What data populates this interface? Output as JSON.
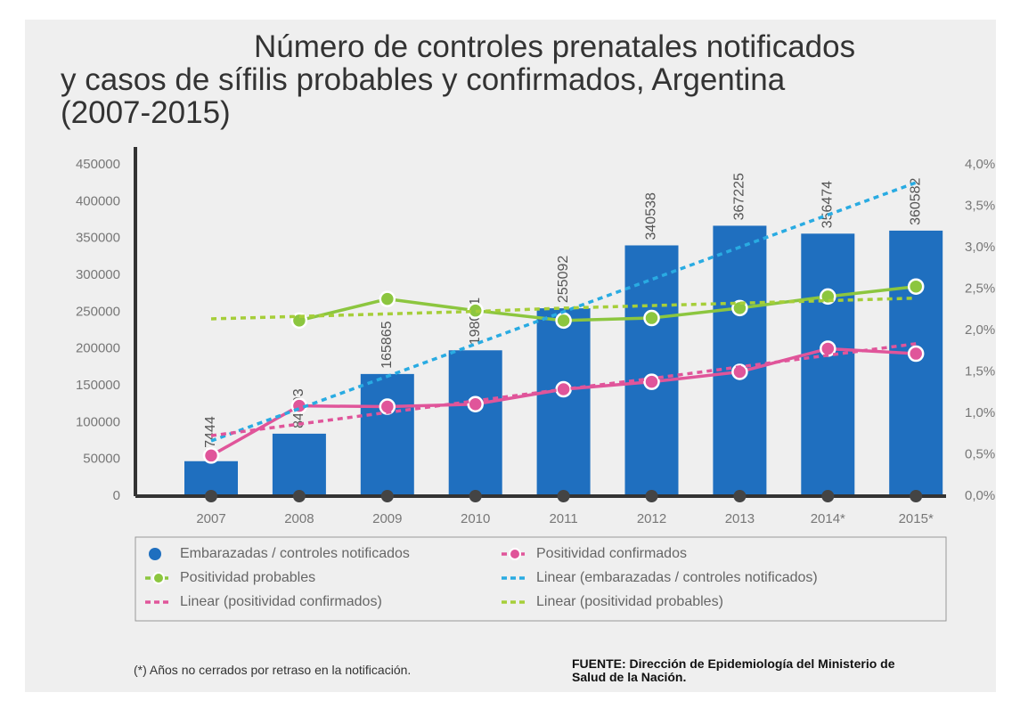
{
  "chart_data": {
    "type": "bar",
    "title": "Número de controles prenatales notificados\ny casos de sífilis probables y confirmados, Argentina\n(2007-2015)",
    "categories": [
      "2007",
      "2008",
      "2009",
      "2010",
      "2011",
      "2012",
      "2013",
      "2014*",
      "2015*"
    ],
    "series": [
      {
        "name": "Embarazadas / controles notificados",
        "kind": "bar",
        "color": "#1f6fbf",
        "values": [
          47444,
          84803,
          165865,
          198051,
          255092,
          340538,
          367225,
          356474,
          360582
        ]
      },
      {
        "name": "Positividad confirmados",
        "kind": "line",
        "axis": "y2",
        "marker": true,
        "color": "#e0559a",
        "values": [
          0.49,
          1.09,
          1.08,
          1.11,
          1.29,
          1.38,
          1.5,
          1.78,
          1.72
        ]
      },
      {
        "name": "Positividad probables",
        "kind": "line",
        "axis": "y2",
        "marker": true,
        "color": "#8cc63f",
        "values": [
          null,
          2.12,
          2.38,
          2.24,
          2.12,
          2.15,
          2.27,
          2.41,
          2.53
        ]
      },
      {
        "name": "Linear (embarazadas / controles notificados)",
        "kind": "line",
        "dashed": true,
        "color": "#29abe2",
        "values": [
          75000,
          118850,
          162700,
          206550,
          250400,
          294250,
          338100,
          381950,
          425800
        ]
      },
      {
        "name": "Linear (positividad confirmados)",
        "kind": "line",
        "axis": "y2",
        "dashed": true,
        "color": "#e0559a",
        "values": [
          0.73,
          0.87,
          1.01,
          1.15,
          1.29,
          1.42,
          1.56,
          1.7,
          1.84
        ]
      },
      {
        "name": "Linear (positividad probables)",
        "kind": "line",
        "axis": "y2",
        "dashed": true,
        "color": "#a6ce39",
        "values": [
          2.14,
          2.17,
          2.2,
          2.23,
          2.27,
          2.3,
          2.33,
          2.36,
          2.39
        ]
      }
    ],
    "ylim": [
      0,
      450000
    ],
    "yticks": [
      0,
      50000,
      100000,
      150000,
      200000,
      250000,
      300000,
      350000,
      400000,
      450000
    ],
    "y2lim": [
      0,
      4
    ],
    "y2ticks": [
      {
        "value": 0,
        "label": "0,0%"
      },
      {
        "value": 0.5,
        "label": "0,5%"
      },
      {
        "value": 1,
        "label": "1,0%"
      },
      {
        "value": 1.5,
        "label": "1,5%"
      },
      {
        "value": 2,
        "label": "2,0%"
      },
      {
        "value": 2.5,
        "label": "2,5%"
      },
      {
        "value": 3,
        "label": "3,0%"
      },
      {
        "value": 3.5,
        "label": "3,5%"
      },
      {
        "value": 4,
        "label": "4,0%"
      }
    ],
    "footnote": "(*) Años no cerrados por retraso en la notificación.",
    "source": "FUENTE: Dirección de Epidemiología del Ministerio de\nSalud de la Nación."
  }
}
